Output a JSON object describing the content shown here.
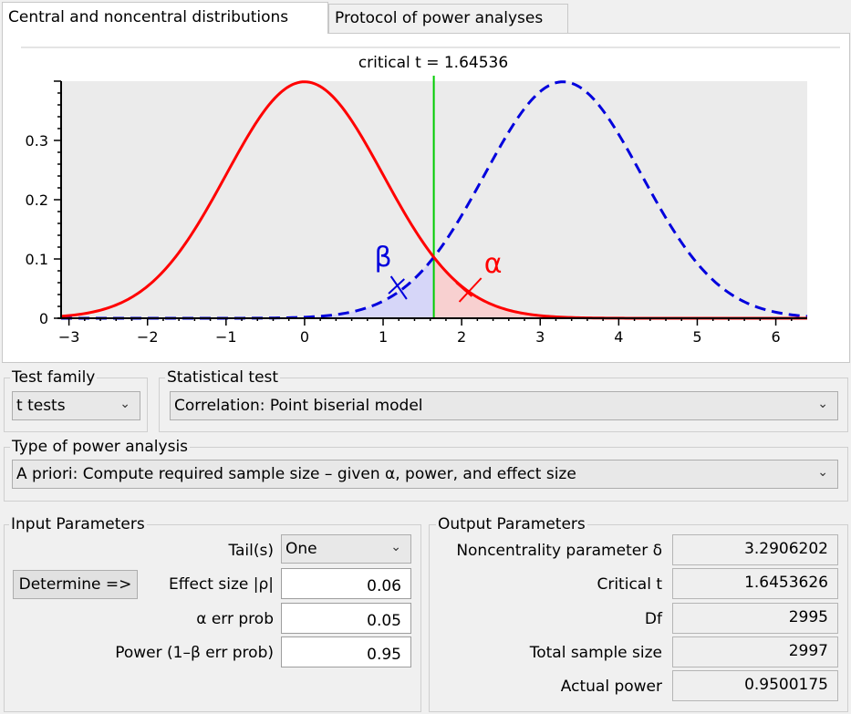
{
  "tabs": {
    "distributions": "Central and noncentral distributions",
    "protocol": "Protocol of power analyses"
  },
  "plot": {
    "title": "critical t = 1.64536",
    "beta_symbol": "β",
    "alpha_symbol": "α",
    "colors": {
      "central": "#ff0000",
      "noncentral": "#0000dd",
      "critical": "#00cc00",
      "beta_fill": "#d6d6f8",
      "alpha_fill": "#f8d0d0",
      "plot_bg": "#ebebeb"
    }
  },
  "chart_data": {
    "type": "line",
    "title": "critical t = 1.64536",
    "xlabel": "",
    "ylabel": "",
    "xlim": [
      -3.1,
      6.4
    ],
    "ylim": [
      0,
      0.4
    ],
    "x_ticks": [
      "−3",
      "−2",
      "−1",
      "0",
      "1",
      "2",
      "3",
      "4",
      "5",
      "6"
    ],
    "x_tick_values": [
      -3,
      -2,
      -1,
      0,
      1,
      2,
      3,
      4,
      5,
      6
    ],
    "y_ticks": [
      "0",
      "0.1",
      "0.2",
      "0.3"
    ],
    "y_tick_values": [
      0,
      0.1,
      0.2,
      0.3
    ],
    "critical_t": 1.64536,
    "noncentrality": 3.2906202,
    "series": [
      {
        "style": "solid",
        "color": "#ff0000",
        "distribution": "central t",
        "df": 2995
      },
      {
        "style": "dashed",
        "color": "#0000dd",
        "distribution": "noncentral t",
        "df": 2995,
        "delta": 3.2906202
      }
    ],
    "annotations": [
      "β",
      "α"
    ]
  },
  "test_family": {
    "label": "Test family",
    "value": "t tests"
  },
  "statistical_test": {
    "label": "Statistical test",
    "value": "Correlation: Point biserial model"
  },
  "power_analysis": {
    "label": "Type of power analysis",
    "value": "A priori: Compute required sample size – given α, power, and effect size"
  },
  "input": {
    "label": "Input Parameters",
    "tails_label": "Tail(s)",
    "tails_value": "One",
    "determine_label": "Determine =>",
    "effect_size_label": "Effect size |ρ|",
    "effect_size_value": "0.06",
    "alpha_label": "α err prob",
    "alpha_value": "0.05",
    "power_label": "Power (1–β err prob)",
    "power_value": "0.95"
  },
  "output": {
    "label": "Output Parameters",
    "noncentrality_label": "Noncentrality parameter δ",
    "noncentrality_value": "3.2906202",
    "critical_t_label": "Critical t",
    "critical_t_value": "1.6453626",
    "df_label": "Df",
    "df_value": "2995",
    "total_n_label": "Total sample size",
    "total_n_value": "2997",
    "actual_power_label": "Actual power",
    "actual_power_value": "0.9500175"
  }
}
